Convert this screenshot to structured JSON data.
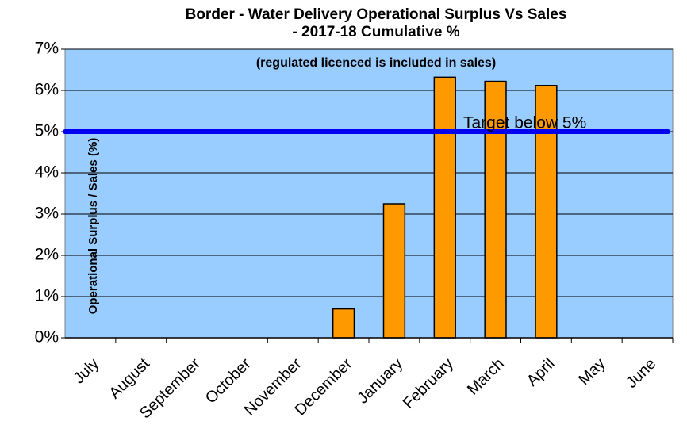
{
  "chart_data": {
    "type": "bar",
    "title": [
      "Border - Water Delivery Operational Surplus Vs Sales",
      "- 2017-18 Cumulative %"
    ],
    "subtitle": "(regulated licenced is included in sales)",
    "y_axis_label": "Operational Surplus / Sales (%)",
    "categories": [
      "July",
      "August",
      "September",
      "October",
      "November",
      "December",
      "January",
      "February",
      "March",
      "April",
      "May",
      "June"
    ],
    "values": [
      null,
      null,
      null,
      null,
      null,
      0.7,
      3.25,
      6.32,
      6.22,
      6.12,
      null,
      null
    ],
    "color": "#ff9900",
    "target": {
      "value": 5,
      "label": "Target below 5%",
      "color": "#0000ee"
    },
    "ylim": [
      0,
      7
    ],
    "yticks": [
      {
        "value": 0,
        "label": "0%"
      },
      {
        "value": 1,
        "label": "1%"
      },
      {
        "value": 2,
        "label": "2%"
      },
      {
        "value": 3,
        "label": "3%"
      },
      {
        "value": 4,
        "label": "4%"
      },
      {
        "value": 5,
        "label": "5%"
      },
      {
        "value": 6,
        "label": "6%"
      },
      {
        "value": 7,
        "label": "7%"
      }
    ],
    "grid": true,
    "background": "#99ccff"
  }
}
